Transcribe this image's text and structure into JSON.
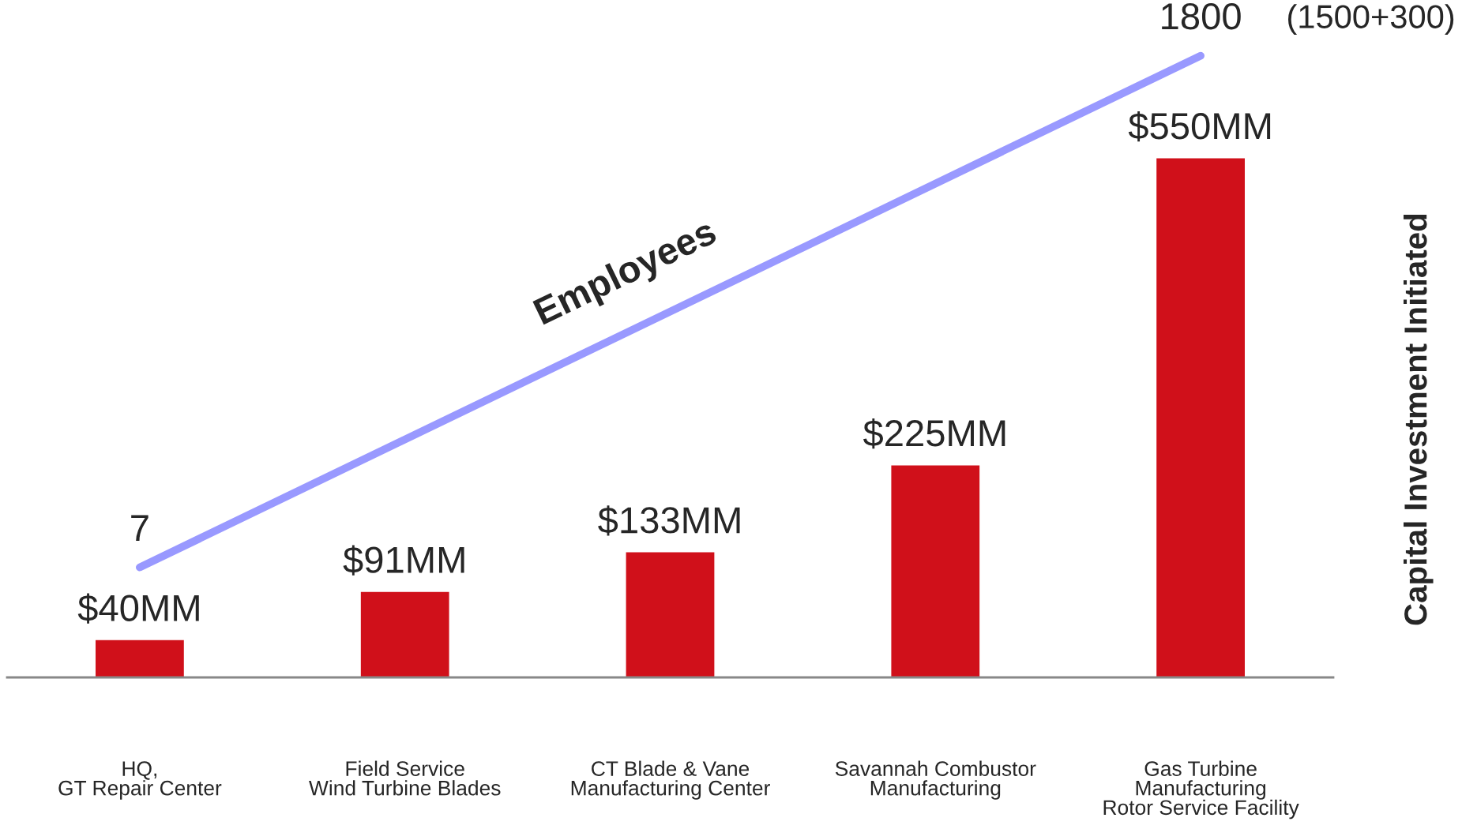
{
  "chart_data": {
    "type": "bar",
    "ylabel": "Capital Investment Initiated",
    "categories": [
      "HQ,\nGT Repair Center",
      "Field Service\nWind Turbine Blades",
      "CT Blade & Vane\nManufacturing Center",
      "Savannah Combustor\nManufacturing",
      "Gas Turbine\nManufacturing\nRotor Service Facility"
    ],
    "series": [
      {
        "color": "#d0101a",
        "values": [
          40,
          91,
          133,
          225,
          550
        ],
        "value_labels": [
          "$40MM",
          "$91MM",
          "$133MM",
          "$225MM",
          "$550MM"
        ]
      },
      {
        "type": "line",
        "name": "Employees",
        "axis": "y2",
        "color": "#9999ff",
        "values": [
          7,
          null,
          null,
          null,
          1800
        ],
        "value_labels": [
          "7",
          null,
          null,
          null,
          "1800"
        ]
      }
    ],
    "annotations": [
      "(1500+300)"
    ],
    "tick_labels": "x",
    "grid": false,
    "legend": false
  }
}
